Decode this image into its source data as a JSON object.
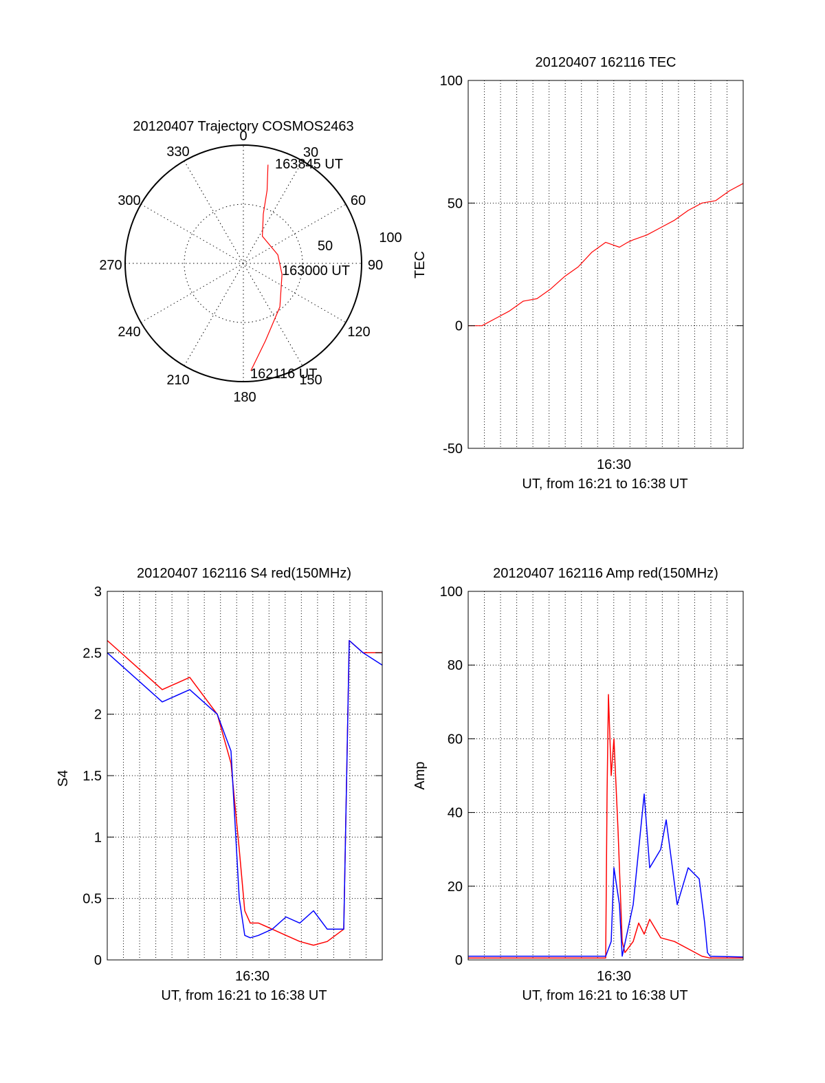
{
  "colors": {
    "red": "#ff0000",
    "blue": "#0000ff",
    "axis": "#000000"
  },
  "chart_data": [
    {
      "id": "trajectory",
      "type": "polar-line",
      "title": "20120407 Trajectory COSMOS2463",
      "azimuth_labels": [
        "0",
        "30",
        "60",
        "90",
        "120",
        "150",
        "180",
        "210",
        "240",
        "270",
        "300",
        "330"
      ],
      "radial_labels": [
        "50",
        "100"
      ],
      "radial_max": 100,
      "annotations": [
        {
          "text": "163845 UT",
          "az": 13.7,
          "r": 81
        },
        {
          "text": "163000 UT",
          "az": 100,
          "r": 30
        },
        {
          "text": "162116 UT",
          "az": 176,
          "r": 91
        }
      ],
      "series": [
        {
          "color": "#ff0000",
          "points": [
            [
              14.0,
              86
            ],
            [
              18,
              65
            ],
            [
              22,
              45
            ],
            [
              35,
              28
            ],
            [
              76,
              30
            ],
            [
              106,
              34
            ],
            [
              140,
              48
            ],
            [
              164,
              68
            ],
            [
              176,
              91
            ]
          ]
        }
      ]
    },
    {
      "id": "tec",
      "type": "line",
      "title": "20120407 162116 TEC",
      "ylabel": "TEC",
      "xlabel": "UT, from 16:21 to 16:38 UT",
      "x_tick_label": "16:30",
      "ylim": [
        -50,
        100
      ],
      "yticks": [
        -50,
        0,
        50,
        100
      ],
      "series": [
        {
          "color": "#ff0000",
          "x": [
            0,
            0.05,
            0.1,
            0.15,
            0.2,
            0.25,
            0.3,
            0.35,
            0.4,
            0.45,
            0.5,
            0.55,
            0.58,
            0.6,
            0.65,
            0.7,
            0.75,
            0.8,
            0.85,
            0.9,
            0.95,
            1.0
          ],
          "y": [
            0,
            0,
            3,
            6,
            10,
            11,
            15,
            20,
            24,
            30,
            34,
            32,
            34,
            35,
            37,
            40,
            43,
            47,
            50,
            51,
            55,
            58
          ]
        }
      ]
    },
    {
      "id": "s4",
      "type": "line",
      "title": "20120407 162116 S4 red(150MHz)",
      "ylabel": "S4",
      "xlabel": "UT, from 16:21 to 16:38 UT",
      "x_tick_label": "16:30",
      "ylim": [
        0,
        3
      ],
      "yticks": [
        0,
        0.5,
        1,
        1.5,
        2,
        2.5,
        3
      ],
      "ytick_labels": [
        "0",
        "0.5",
        "1",
        "1.5",
        "2",
        "2.5",
        "3"
      ],
      "series": [
        {
          "color": "#ff0000",
          "x": [
            0,
            0.1,
            0.2,
            0.3,
            0.4,
            0.45,
            0.48,
            0.5,
            0.52,
            0.55,
            0.6,
            0.65,
            0.7,
            0.75,
            0.8,
            0.86,
            0.88,
            0.93,
            1.0
          ],
          "y": [
            2.6,
            2.4,
            2.2,
            2.3,
            2.0,
            1.6,
            0.9,
            0.4,
            0.3,
            0.3,
            0.25,
            0.2,
            0.15,
            0.12,
            0.15,
            0.25,
            2.6,
            2.5,
            2.5
          ]
        },
        {
          "color": "#0000ff",
          "x": [
            0,
            0.1,
            0.2,
            0.3,
            0.4,
            0.45,
            0.48,
            0.5,
            0.52,
            0.55,
            0.6,
            0.65,
            0.7,
            0.75,
            0.8,
            0.86,
            0.88,
            0.93,
            1.0
          ],
          "y": [
            2.5,
            2.3,
            2.1,
            2.2,
            2.0,
            1.7,
            0.5,
            0.2,
            0.18,
            0.2,
            0.25,
            0.35,
            0.3,
            0.4,
            0.25,
            0.25,
            2.6,
            2.5,
            2.4
          ]
        }
      ]
    },
    {
      "id": "amp",
      "type": "line",
      "title": "20120407 162116 Amp red(150MHz)",
      "ylabel": "Amp",
      "xlabel": "UT, from 16:21 to 16:38 UT",
      "x_tick_label": "16:30",
      "ylim": [
        0,
        100
      ],
      "yticks": [
        0,
        20,
        40,
        60,
        80,
        100
      ],
      "series": [
        {
          "color": "#ff0000",
          "x": [
            0,
            0.5,
            0.505,
            0.51,
            0.52,
            0.53,
            0.545,
            0.56,
            0.57,
            0.6,
            0.62,
            0.64,
            0.66,
            0.7,
            0.75,
            0.8,
            0.85,
            0.88,
            1.0
          ],
          "y": [
            0.5,
            0.5,
            45,
            72,
            50,
            60,
            35,
            5,
            2,
            5,
            10,
            7,
            11,
            6,
            5,
            3,
            1,
            0.5,
            0.5
          ]
        },
        {
          "color": "#0000ff",
          "x": [
            0,
            0.5,
            0.52,
            0.53,
            0.55,
            0.56,
            0.6,
            0.64,
            0.66,
            0.7,
            0.72,
            0.76,
            0.8,
            0.84,
            0.86,
            0.87,
            0.88,
            1.0
          ],
          "y": [
            1,
            1,
            5,
            25,
            15,
            1,
            15,
            45,
            25,
            30,
            38,
            15,
            25,
            22,
            10,
            2,
            1,
            0.8
          ]
        }
      ]
    }
  ]
}
